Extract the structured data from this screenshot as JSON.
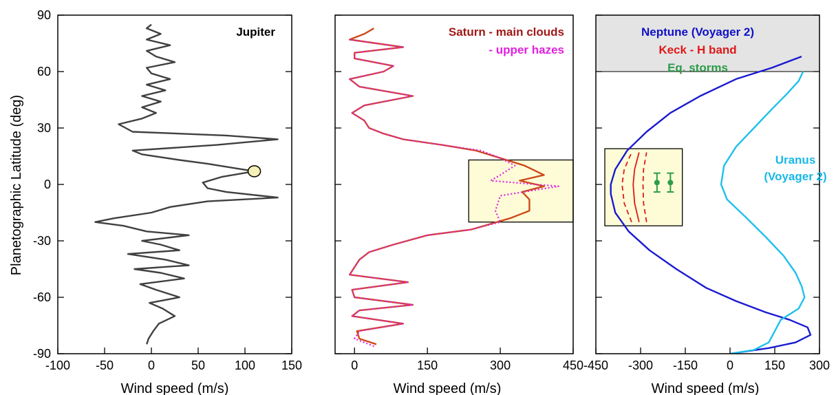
{
  "chart_data": [
    {
      "type": "line",
      "panel": "jupiter",
      "xlabel": "Wind speed (m/s)",
      "ylabel": "Planetographic Latitude (deg)",
      "xlim": [
        -100,
        150
      ],
      "ylim": [
        -90,
        90
      ],
      "xticks": [
        "-100",
        "-50",
        "0",
        "50",
        "100",
        "150"
      ],
      "yticks": [
        "-90",
        "-60",
        "-30",
        "0",
        "30",
        "60",
        "90"
      ],
      "grid": false,
      "annotations": [
        {
          "text": "Jupiter",
          "color": "#000000"
        }
      ],
      "marker": {
        "x": 110,
        "y": 7,
        "fill": "#f5f0b8"
      },
      "series": [
        {
          "color": "#404040",
          "points": [
            [
              -5,
              -85
            ],
            [
              -3,
              -82
            ],
            [
              2,
              -78
            ],
            [
              8,
              -74
            ],
            [
              25,
              -70
            ],
            [
              12,
              -66
            ],
            [
              -2,
              -63
            ],
            [
              30,
              -60
            ],
            [
              5,
              -56
            ],
            [
              -12,
              -53
            ],
            [
              35,
              -50
            ],
            [
              10,
              -47
            ],
            [
              -18,
              -45
            ],
            [
              40,
              -43
            ],
            [
              15,
              -40
            ],
            [
              -25,
              -37
            ],
            [
              30,
              -35
            ],
            [
              10,
              -32
            ],
            [
              -10,
              -30
            ],
            [
              40,
              -27
            ],
            [
              -5,
              -25
            ],
            [
              -30,
              -22
            ],
            [
              -60,
              -20
            ],
            [
              -40,
              -18
            ],
            [
              0,
              -15
            ],
            [
              20,
              -12
            ],
            [
              60,
              -9
            ],
            [
              135,
              -7
            ],
            [
              80,
              -4
            ],
            [
              60,
              -2
            ],
            [
              55,
              1
            ],
            [
              75,
              4
            ],
            [
              110,
              7
            ],
            [
              60,
              11
            ],
            [
              30,
              13
            ],
            [
              -10,
              16
            ],
            [
              -20,
              18
            ],
            [
              70,
              21
            ],
            [
              135,
              24
            ],
            [
              80,
              26
            ],
            [
              -20,
              28
            ],
            [
              -35,
              32
            ],
            [
              -10,
              35
            ],
            [
              5,
              38
            ],
            [
              -10,
              41
            ],
            [
              10,
              44
            ],
            [
              -10,
              47
            ],
            [
              15,
              50
            ],
            [
              -5,
              53
            ],
            [
              20,
              56
            ],
            [
              0,
              59
            ],
            [
              -5,
              62
            ],
            [
              25,
              65
            ],
            [
              5,
              68
            ],
            [
              -5,
              71
            ],
            [
              20,
              74
            ],
            [
              -5,
              77
            ],
            [
              10,
              80
            ],
            [
              -5,
              83
            ],
            [
              0,
              85
            ]
          ]
        }
      ]
    },
    {
      "type": "line",
      "panel": "saturn",
      "xlabel": "Wind speed (m/s)",
      "xlim": [
        -40,
        450
      ],
      "ylim": [
        -90,
        90
      ],
      "xticks": [
        "0",
        "150",
        "300",
        "450"
      ],
      "grid": false,
      "annotations": [
        {
          "text": "Saturn - main clouds",
          "color": "#a01818"
        },
        {
          "text": "- upper hazes",
          "color": "#e020e0"
        }
      ],
      "highlight_box": {
        "x": [
          235,
          450
        ],
        "y": [
          -20,
          13
        ],
        "fill": "#fdfcd6"
      },
      "series": [
        {
          "name": "Saturn - main clouds",
          "color": "#cc4a1a",
          "style": "solid",
          "points": [
            [
              45,
              -85
            ],
            [
              10,
              -82
            ],
            [
              5,
              -78
            ],
            [
              100,
              -74
            ],
            [
              -5,
              -70
            ],
            [
              10,
              -67
            ],
            [
              120,
              -64
            ],
            [
              0,
              -60
            ],
            [
              -5,
              -56
            ],
            [
              110,
              -52
            ],
            [
              -10,
              -48
            ],
            [
              0,
              -44
            ],
            [
              10,
              -40
            ],
            [
              30,
              -36
            ],
            [
              80,
              -32
            ],
            [
              150,
              -27
            ],
            [
              240,
              -24
            ],
            [
              320,
              -18
            ],
            [
              360,
              -14
            ],
            [
              360,
              -8
            ],
            [
              345,
              -4
            ],
            [
              390,
              -1
            ],
            [
              340,
              2
            ],
            [
              390,
              5
            ],
            [
              350,
              10
            ],
            [
              300,
              14
            ],
            [
              250,
              18
            ],
            [
              180,
              21
            ],
            [
              100,
              24
            ],
            [
              60,
              27
            ],
            [
              30,
              30
            ],
            [
              20,
              34
            ],
            [
              -5,
              38
            ],
            [
              20,
              42
            ],
            [
              120,
              47
            ],
            [
              10,
              52
            ],
            [
              -10,
              56
            ],
            [
              60,
              60
            ],
            [
              80,
              63
            ],
            [
              0,
              67
            ],
            [
              0,
              70
            ],
            [
              100,
              73
            ],
            [
              -10,
              77
            ],
            [
              20,
              80
            ],
            [
              40,
              83
            ]
          ]
        },
        {
          "name": "- upper hazes",
          "color": "#e020e0",
          "style": "dotted",
          "points": [
            [
              40,
              -86
            ],
            [
              0,
              -82
            ],
            [
              10,
              -78
            ],
            [
              100,
              -74
            ],
            [
              -5,
              -70
            ],
            [
              10,
              -67
            ],
            [
              120,
              -64
            ],
            [
              0,
              -60
            ],
            [
              -5,
              -56
            ],
            [
              110,
              -52
            ],
            [
              -10,
              -48
            ],
            [
              0,
              -44
            ],
            [
              10,
              -40
            ],
            [
              30,
              -36
            ],
            [
              80,
              -32
            ],
            [
              150,
              -27
            ],
            [
              240,
              -24
            ],
            [
              300,
              -20
            ],
            [
              290,
              -14
            ],
            [
              300,
              -6
            ],
            [
              420,
              -1
            ],
            [
              280,
              2
            ],
            [
              300,
              5
            ],
            [
              330,
              10
            ],
            [
              300,
              14
            ],
            [
              260,
              18
            ],
            [
              180,
              21
            ],
            [
              100,
              24
            ],
            [
              60,
              27
            ],
            [
              30,
              30
            ],
            [
              20,
              34
            ],
            [
              -5,
              38
            ],
            [
              20,
              42
            ],
            [
              120,
              47
            ],
            [
              10,
              52
            ],
            [
              -10,
              56
            ],
            [
              60,
              60
            ],
            [
              80,
              63
            ],
            [
              0,
              67
            ],
            [
              0,
              70
            ],
            [
              100,
              73
            ],
            [
              -10,
              77
            ]
          ]
        }
      ]
    },
    {
      "type": "line",
      "panel": "neptune-uranus",
      "xlabel": "Wind speed (m/s)",
      "xlim": [
        -450,
        300
      ],
      "ylim": [
        -90,
        90
      ],
      "xticks": [
        "-450",
        "-300",
        "-150",
        "0",
        "150",
        "300"
      ],
      "grid": false,
      "annotations": [
        {
          "text": "Neptune (Voyager 2)",
          "color": "#1010c8"
        },
        {
          "text": "Keck - H band",
          "color": "#e01818"
        },
        {
          "text": "Eq. storms",
          "color": "#2e9c4a"
        },
        {
          "text": "Uranus",
          "color": "#18b8e8"
        },
        {
          "text": "(Voyager 2)",
          "color": "#18b8e8"
        }
      ],
      "shaded_band": {
        "y": [
          60,
          90
        ],
        "fill": "#e4e4e4"
      },
      "highlight_box": {
        "x": [
          -420,
          -160
        ],
        "y": [
          -22,
          19
        ],
        "fill": "#fdfcd6"
      },
      "series": [
        {
          "name": "Neptune (Voyager 2)",
          "color": "#1a1ad0",
          "points": [
            [
              0,
              -90
            ],
            [
              130,
              -87
            ],
            [
              220,
              -84
            ],
            [
              270,
              -80
            ],
            [
              260,
              -76
            ],
            [
              200,
              -72
            ],
            [
              120,
              -68
            ],
            [
              20,
              -62
            ],
            [
              -80,
              -55
            ],
            [
              -180,
              -45
            ],
            [
              -270,
              -35
            ],
            [
              -340,
              -25
            ],
            [
              -385,
              -15
            ],
            [
              -400,
              -5
            ],
            [
              -400,
              0
            ],
            [
              -385,
              8
            ],
            [
              -345,
              18
            ],
            [
              -280,
              28
            ],
            [
              -200,
              38
            ],
            [
              -100,
              47
            ],
            [
              20,
              56
            ],
            [
              140,
              62
            ],
            [
              240,
              68
            ]
          ]
        },
        {
          "name": "Uranus (Voyager 2)",
          "color": "#1ec0ec",
          "points": [
            [
              0,
              -90
            ],
            [
              80,
              -88
            ],
            [
              130,
              -84
            ],
            [
              150,
              -78
            ],
            [
              170,
              -72
            ],
            [
              230,
              -66
            ],
            [
              250,
              -60
            ],
            [
              240,
              -54
            ],
            [
              220,
              -47
            ],
            [
              180,
              -38
            ],
            [
              120,
              -28
            ],
            [
              50,
              -17
            ],
            [
              -10,
              -8
            ],
            [
              -30,
              0
            ],
            [
              -20,
              10
            ],
            [
              20,
              20
            ],
            [
              80,
              30
            ],
            [
              140,
              40
            ],
            [
              190,
              48
            ],
            [
              230,
              55
            ],
            [
              245,
              60
            ]
          ]
        }
      ],
      "keck_curves": [
        {
          "style": "solid",
          "points": [
            [
              -305,
              -20
            ],
            [
              -320,
              -10
            ],
            [
              -325,
              0
            ],
            [
              -320,
              8
            ],
            [
              -305,
              17
            ]
          ]
        },
        {
          "style": "dashed",
          "points": [
            [
              -330,
              -20
            ],
            [
              -355,
              -10
            ],
            [
              -362,
              0
            ],
            [
              -355,
              8
            ],
            [
              -330,
              17
            ]
          ]
        },
        {
          "style": "dashed",
          "points": [
            [
              -280,
              -20
            ],
            [
              -290,
              -10
            ],
            [
              -292,
              0
            ],
            [
              -290,
              8
            ],
            [
              -280,
              17
            ]
          ]
        }
      ],
      "storms": [
        {
          "x": -245,
          "y": 1,
          "err": 5
        },
        {
          "x": -200,
          "y": 1,
          "err": 5
        }
      ]
    }
  ]
}
